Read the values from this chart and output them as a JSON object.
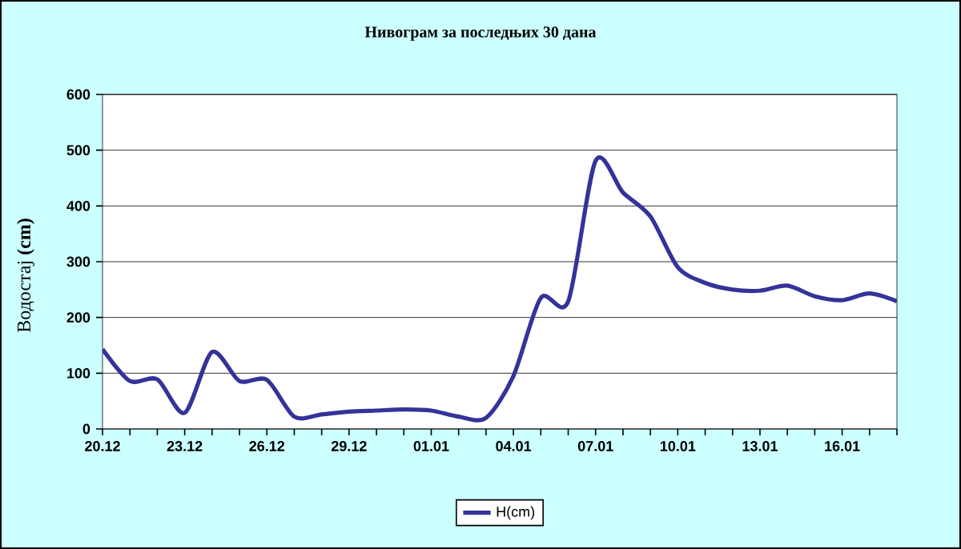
{
  "chart_data": {
    "type": "line",
    "title": "Нивограм за последњих 30 дана",
    "ylabel": "Водостај **(cm)**",
    "categories": [
      "20.12",
      null,
      null,
      "23.12",
      null,
      null,
      "26.12",
      null,
      null,
      "29.12",
      null,
      null,
      "01.01",
      null,
      null,
      "04.01",
      null,
      null,
      "07.01",
      null,
      null,
      "10.01",
      null,
      null,
      "13.01",
      null,
      null,
      "16.01",
      null,
      null
    ],
    "series": [
      {
        "name": "H(cm)",
        "color": "#333399",
        "values": [
          143,
          86,
          89,
          29,
          138,
          86,
          88,
          22,
          26,
          31,
          33,
          35,
          33,
          22,
          20,
          95,
          235,
          229,
          481,
          424,
          381,
          290,
          262,
          250,
          248,
          257,
          238,
          231,
          243,
          229
        ]
      }
    ],
    "ylim": [
      0,
      600
    ],
    "yticks": [
      0,
      100,
      200,
      300,
      400,
      500,
      600
    ],
    "grid": "y",
    "legend": "bottom",
    "marker": "none",
    "line_style": "solid"
  }
}
